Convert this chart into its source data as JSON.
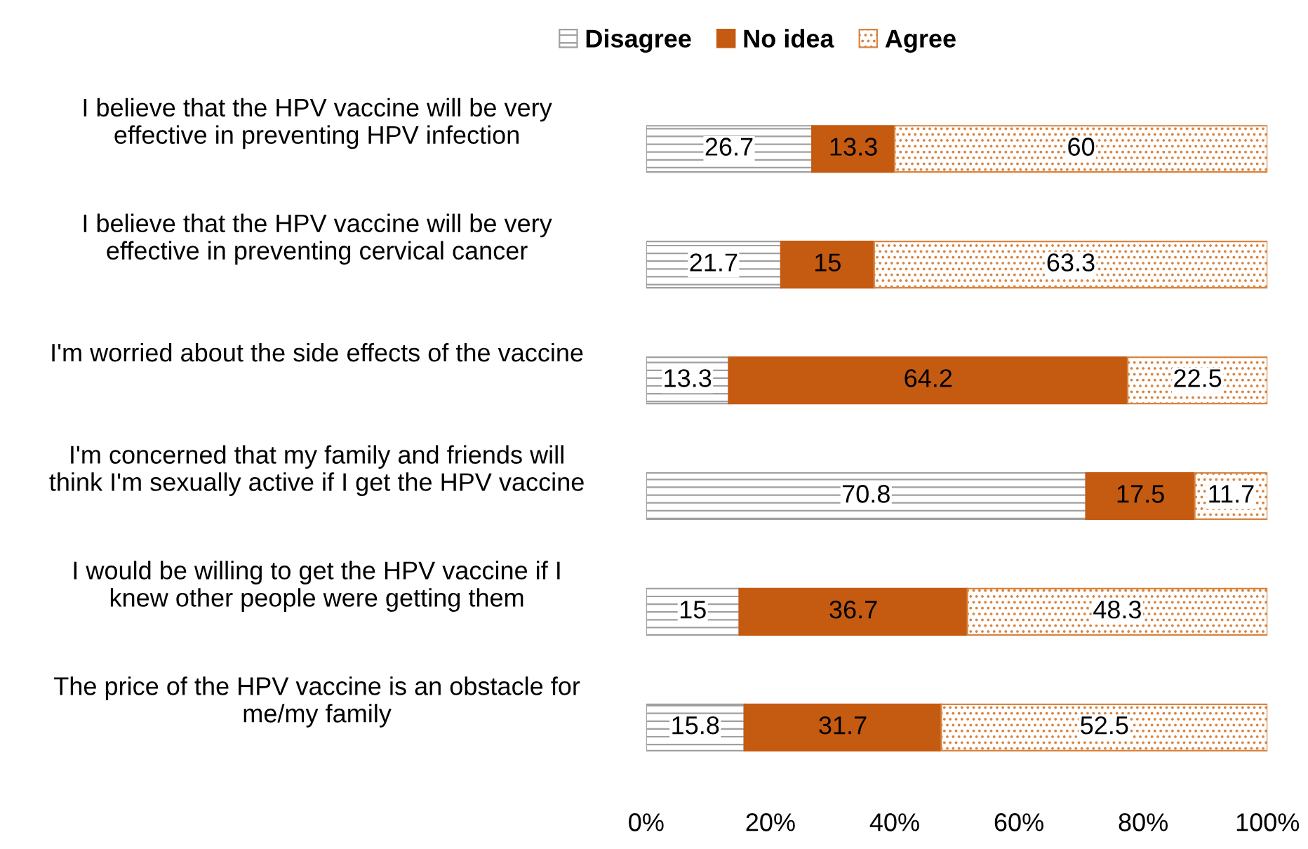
{
  "chart_data": {
    "type": "bar",
    "orientation": "horizontal",
    "stacked": true,
    "data_labels": true,
    "legend": "top",
    "grid": false,
    "categories": [
      "I believe that the HPV vaccine will be very effective in preventing HPV infection",
      "I believe that the HPV vaccine will be very effective in preventing cervical cancer",
      "I'm worried about the side effects of the vaccine",
      "I'm concerned that my family and friends will think I'm sexually active if I get the HPV vaccine",
      "I would be willing to get the HPV vaccine if I knew other people were getting them",
      "The price of the HPV vaccine is an obstacle for me/my family"
    ],
    "series": [
      {
        "name": "Disagree",
        "color": "#a0a0a0",
        "values": [
          26.7,
          21.7,
          13.3,
          70.8,
          15,
          15.8
        ]
      },
      {
        "name": "No idea",
        "color": "#c55a11",
        "values": [
          13.3,
          15,
          64.2,
          17.5,
          36.7,
          31.7
        ]
      },
      {
        "name": "Agree",
        "color": "#d9843f",
        "values": [
          60,
          63.3,
          22.5,
          11.7,
          48.3,
          52.5
        ]
      }
    ],
    "xlim": [
      0,
      100
    ],
    "xticks": [
      {
        "value": 0,
        "label": "0%"
      },
      {
        "value": 20,
        "label": "20%"
      },
      {
        "value": 40,
        "label": "40%"
      },
      {
        "value": 60,
        "label": "60%"
      },
      {
        "value": 80,
        "label": "80%"
      },
      {
        "value": 100,
        "label": "100%"
      }
    ]
  }
}
